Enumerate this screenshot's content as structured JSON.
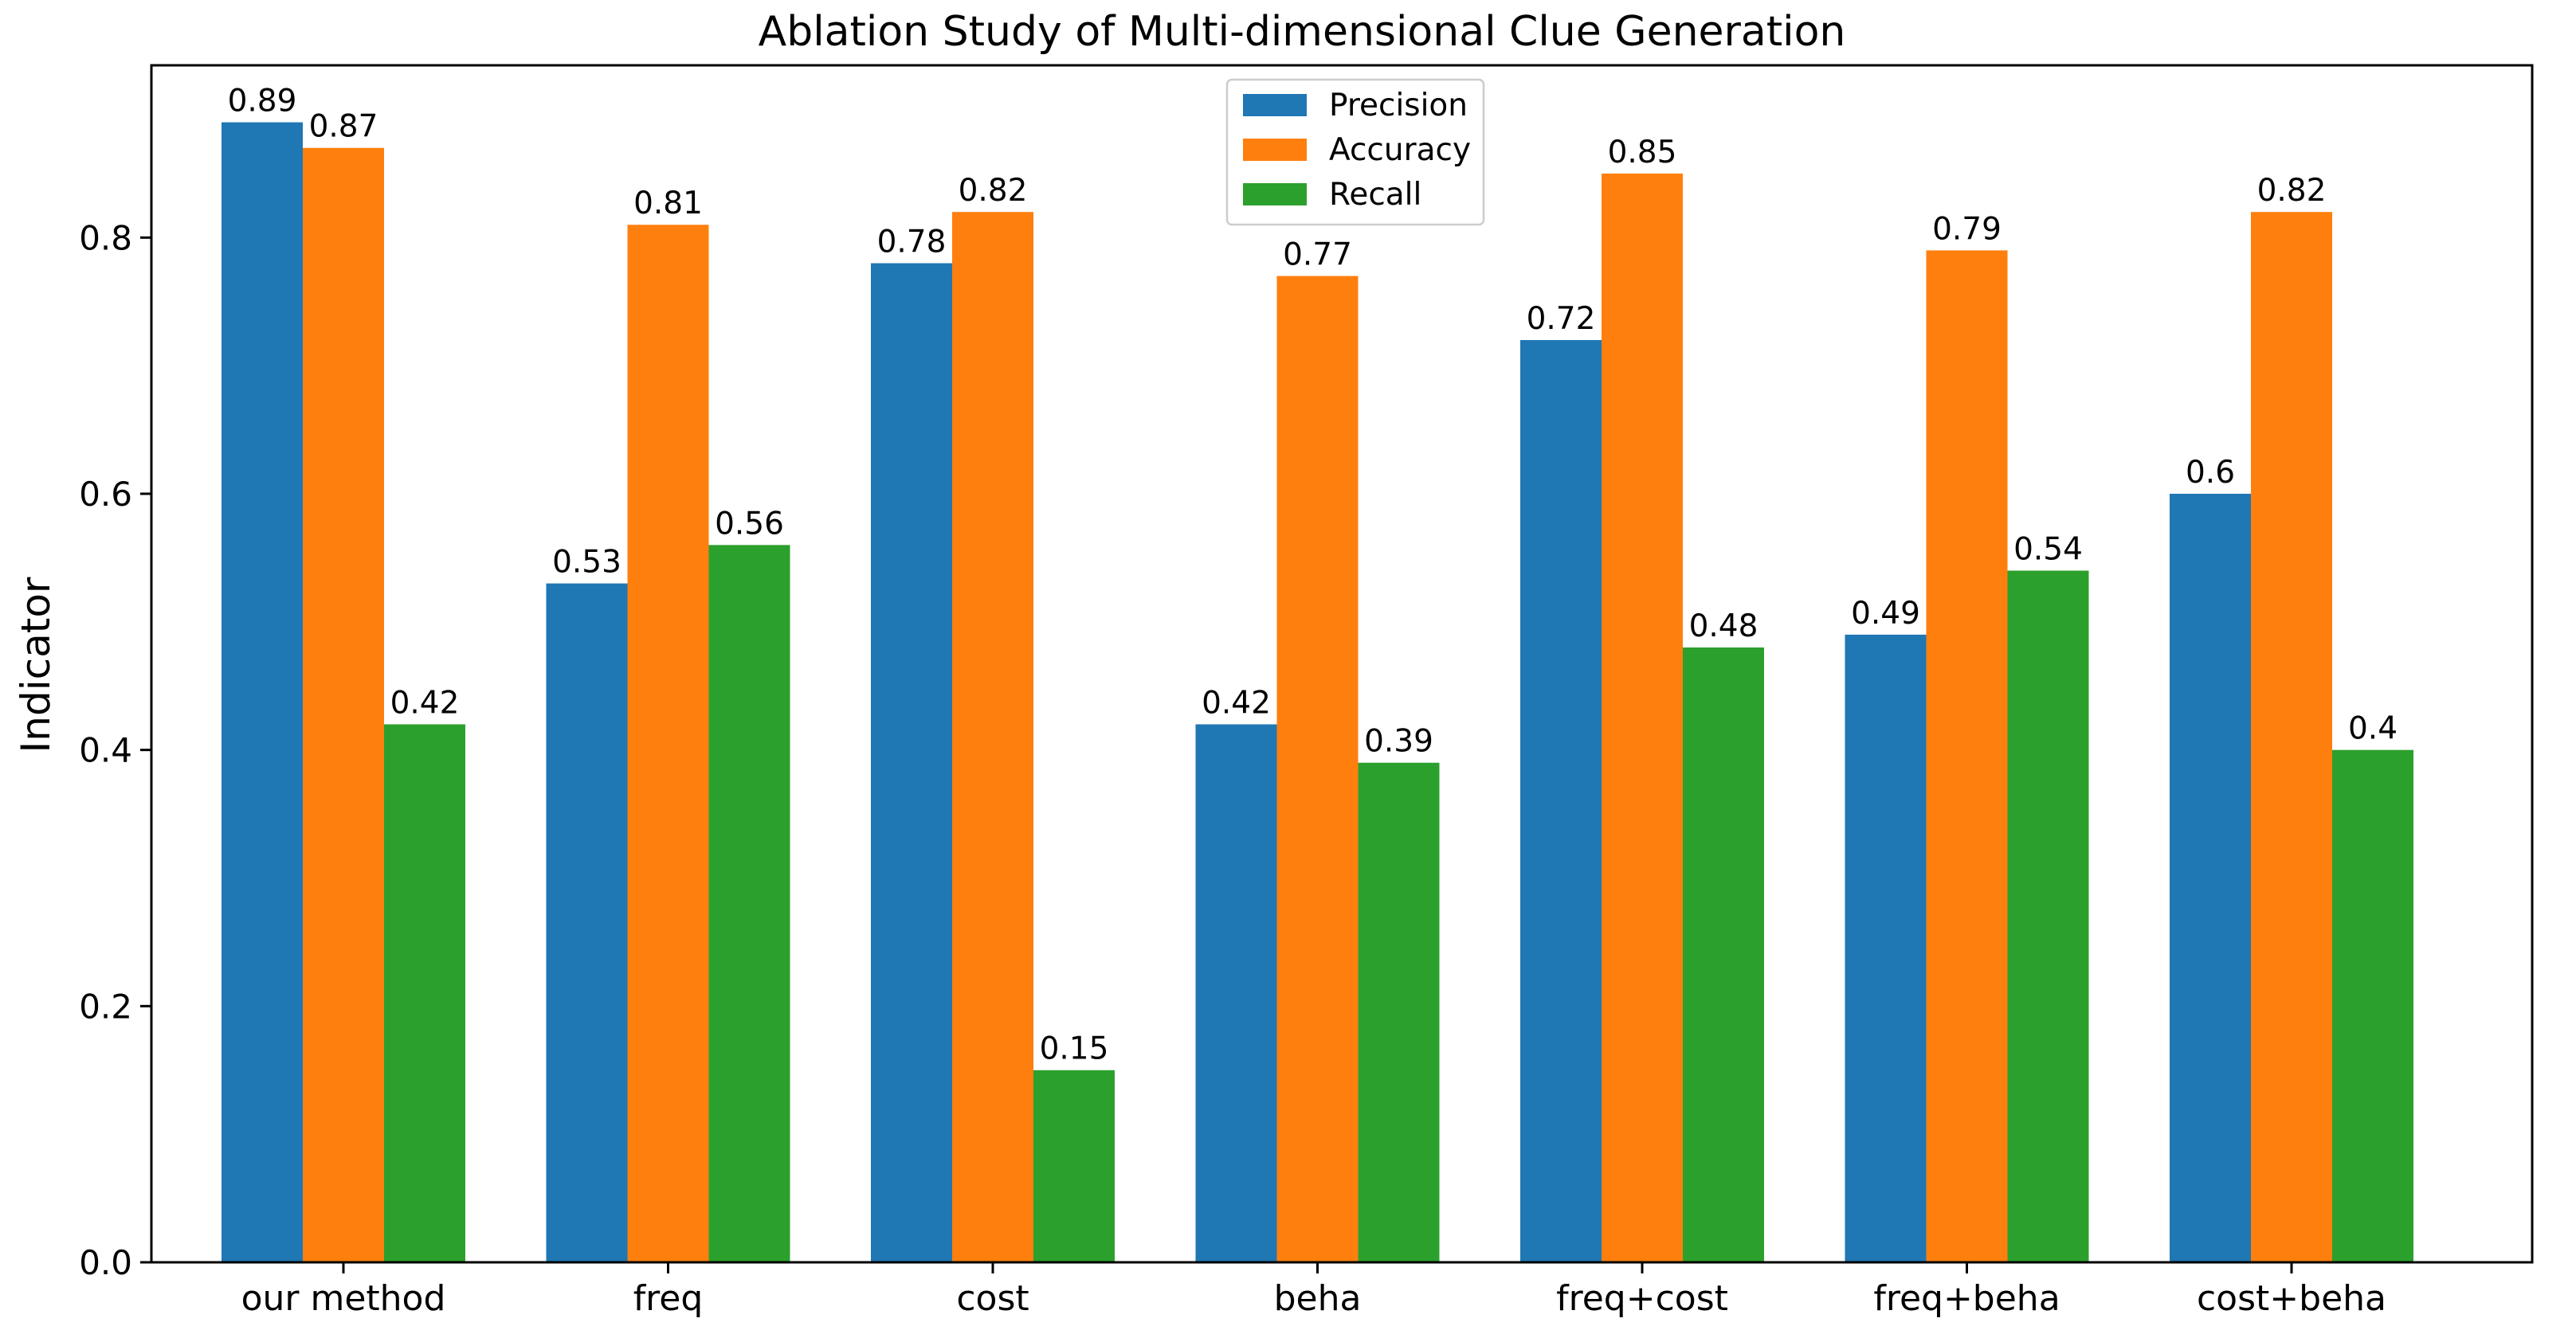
{
  "chart_data": {
    "type": "bar",
    "title": "Ablation Study of Multi-dimensional Clue Generation",
    "xlabel": "",
    "ylabel": "Indicator",
    "categories": [
      "our method",
      "freq",
      "cost",
      "beha",
      "freq+cost",
      "freq+beha",
      "cost+beha"
    ],
    "series": [
      {
        "name": "Precision",
        "color": "#1f77b4",
        "values": [
          0.89,
          0.53,
          0.78,
          0.42,
          0.72,
          0.49,
          0.6
        ]
      },
      {
        "name": "Accuracy",
        "color": "#ff7f0e",
        "values": [
          0.87,
          0.81,
          0.82,
          0.77,
          0.85,
          0.79,
          0.82
        ]
      },
      {
        "name": "Recall",
        "color": "#2ca02c",
        "values": [
          0.42,
          0.56,
          0.15,
          0.39,
          0.48,
          0.54,
          0.4
        ]
      }
    ],
    "data_labels": [
      [
        "0.89",
        "0.53",
        "0.78",
        "0.42",
        "0.72",
        "0.49",
        "0.6"
      ],
      [
        "0.87",
        "0.81",
        "0.82",
        "0.77",
        "0.85",
        "0.79",
        "0.82"
      ],
      [
        "0.42",
        "0.56",
        "0.15",
        "0.39",
        "0.48",
        "0.54",
        "0.4"
      ]
    ],
    "ylim": [
      0,
      0.9345
    ],
    "yticks": [
      0.0,
      0.2,
      0.4,
      0.6,
      0.8
    ],
    "ytick_labels": [
      "0.0",
      "0.2",
      "0.4",
      "0.6",
      "0.8"
    ],
    "grid": false,
    "legend_position": "top-center"
  }
}
